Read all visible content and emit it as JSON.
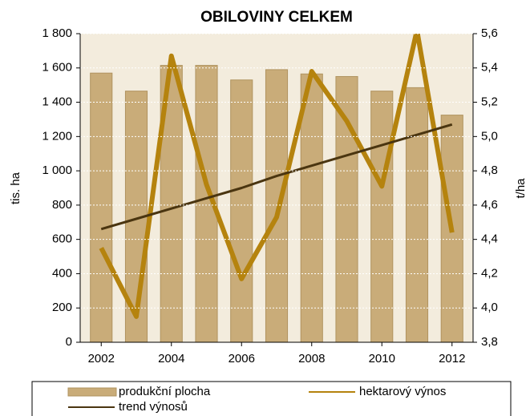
{
  "chart_data": {
    "type": "bar_line",
    "title": "OBILOVINY CELKEM",
    "ylabel": "tis. ha",
    "y2label": "t/ha",
    "x": [
      2002,
      2003,
      2004,
      2005,
      2006,
      2007,
      2008,
      2009,
      2010,
      2011,
      2012
    ],
    "xlim": [
      2001.4,
      2012.6
    ],
    "xticks": [
      2002,
      2004,
      2006,
      2008,
      2010,
      2012
    ],
    "ylim": [
      0,
      1800
    ],
    "yticks": [
      0,
      200,
      400,
      600,
      800,
      {
        "value": 1000,
        "label": "1 000"
      },
      {
        "value": 1200,
        "label": "1 200"
      },
      {
        "value": 1400,
        "label": "1 400"
      },
      {
        "value": 1600,
        "label": "1 600"
      },
      {
        "value": 1800,
        "label": "1 800"
      }
    ],
    "y2lim": [
      3.8,
      5.6
    ],
    "y2ticks": [
      {
        "value": 3.8,
        "label": "3,8"
      },
      {
        "value": 4.0,
        "label": "4,0"
      },
      {
        "value": 4.2,
        "label": "4,2"
      },
      {
        "value": 4.4,
        "label": "4,4"
      },
      {
        "value": 4.6,
        "label": "4,6"
      },
      {
        "value": 4.8,
        "label": "4,8"
      },
      {
        "value": 5.0,
        "label": "5,0"
      },
      {
        "value": 5.2,
        "label": "5,2"
      },
      {
        "value": 5.4,
        "label": "5,4"
      },
      {
        "value": 5.6,
        "label": "5,6"
      }
    ],
    "grid": true,
    "series": [
      {
        "name": "produkční plocha",
        "type": "bar",
        "color": "#c9ac79",
        "values": [
          1570,
          1465,
          1615,
          1615,
          1530,
          1590,
          1565,
          1550,
          1465,
          1485,
          1325
        ]
      },
      {
        "name": "hektarový výnos",
        "type": "line",
        "axis": "y2",
        "color": "#b5830e",
        "values": [
          4.35,
          3.95,
          5.47,
          4.72,
          4.17,
          4.53,
          5.38,
          5.09,
          4.71,
          5.62,
          4.44
        ]
      },
      {
        "name": "trend výnosů",
        "type": "line",
        "axis": "y2",
        "color": "#4a3510",
        "values": [
          4.46,
          4.52,
          4.58,
          4.64,
          4.7,
          4.77,
          4.83,
          4.89,
          4.95,
          5.01,
          5.07
        ]
      }
    ]
  }
}
